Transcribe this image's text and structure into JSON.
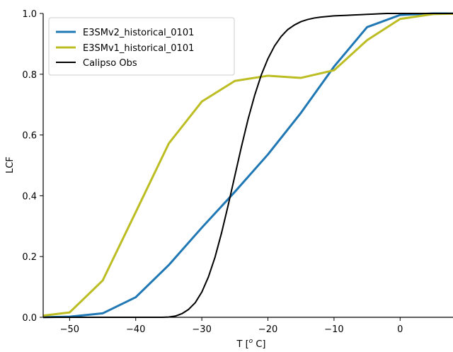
{
  "chart_data": {
    "type": "line",
    "title": "",
    "xlabel_prefix": "T [",
    "xlabel_super": "o",
    "xlabel_suffix": " C]",
    "ylabel": "LCF",
    "xlim": [
      -54,
      8
    ],
    "ylim": [
      0,
      1
    ],
    "xticks": [
      -50,
      -40,
      -30,
      -20,
      -10,
      0
    ],
    "yticks": [
      0.0,
      0.2,
      0.4,
      0.6,
      0.8,
      1.0
    ],
    "xtick_labels": [
      "−50",
      "−40",
      "−30",
      "−20",
      "−10",
      "0"
    ],
    "ytick_labels": [
      "0.0",
      "0.2",
      "0.4",
      "0.6",
      "0.8",
      "1.0"
    ],
    "grid": false,
    "legend_position": "top-left",
    "series": [
      {
        "name": "E3SMv2_historical_0101",
        "color": "#1f77b4",
        "x": [
          -55,
          -50,
          -45,
          -40,
          -35,
          -30,
          -25,
          -20,
          -15,
          -10,
          -5,
          0,
          5,
          10
        ],
        "y": [
          0.0,
          0.002,
          0.013,
          0.066,
          0.172,
          0.295,
          0.413,
          0.536,
          0.673,
          0.825,
          0.955,
          0.995,
          1.0,
          1.0
        ]
      },
      {
        "name": "E3SMv1_historical_0101",
        "color": "#bcbd22",
        "x": [
          -55,
          -50,
          -45,
          -40,
          -35,
          -30,
          -25,
          -20,
          -15,
          -10,
          -5,
          0,
          5,
          10
        ],
        "y": [
          0.003,
          0.016,
          0.121,
          0.346,
          0.572,
          0.71,
          0.778,
          0.795,
          0.788,
          0.813,
          0.912,
          0.982,
          0.998,
          1.0
        ]
      },
      {
        "name": "Calipso Obs",
        "color": "#000000",
        "x": [
          -54,
          -40,
          -36,
          -35,
          -34,
          -33,
          -32,
          -31,
          -30,
          -29,
          -28,
          -27,
          -26,
          -25,
          -24,
          -23,
          -22,
          -21,
          -20,
          -19,
          -18,
          -17,
          -16,
          -15,
          -14,
          -13,
          -12,
          -11,
          -10,
          -9,
          -8,
          -7,
          -6,
          -5,
          -4,
          -3,
          -2,
          -1,
          0,
          2,
          4,
          8
        ],
        "y": [
          0.0,
          0.0,
          0.0,
          0.001,
          0.004,
          0.012,
          0.026,
          0.048,
          0.083,
          0.133,
          0.198,
          0.279,
          0.37,
          0.466,
          0.562,
          0.652,
          0.731,
          0.798,
          0.851,
          0.893,
          0.924,
          0.947,
          0.962,
          0.973,
          0.98,
          0.985,
          0.988,
          0.99,
          0.992,
          0.993,
          0.994,
          0.995,
          0.996,
          0.997,
          0.998,
          0.999,
          1.0,
          1.0,
          1.0,
          1.0,
          1.0,
          1.0
        ]
      }
    ]
  }
}
